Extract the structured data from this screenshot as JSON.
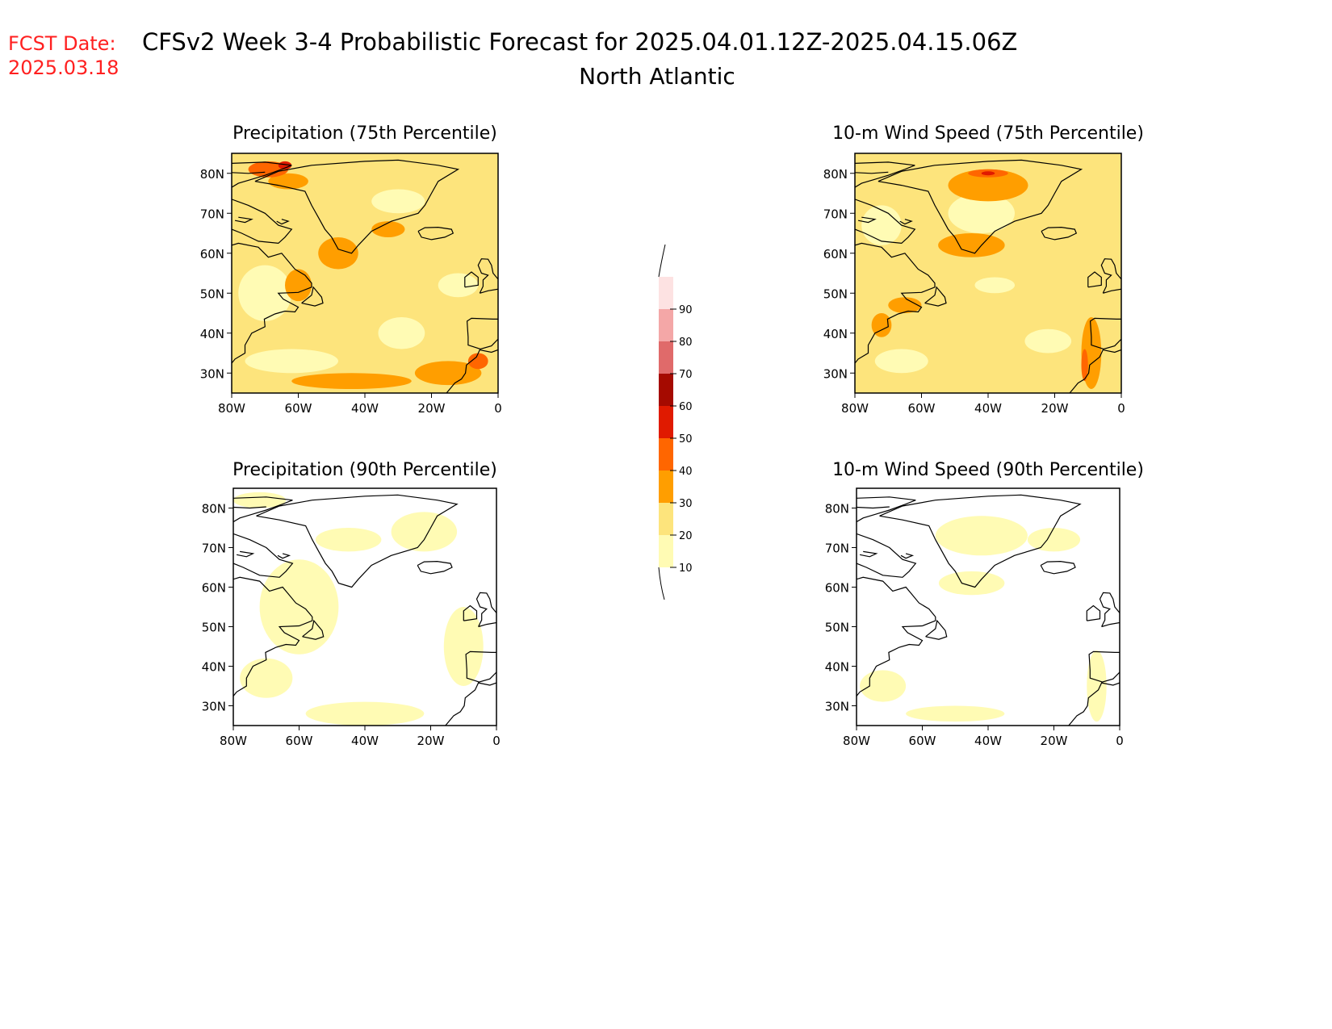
{
  "header": {
    "fcst_label": "FCST Date:",
    "fcst_date": "2025.03.18",
    "title": "CFSv2 Week 3-4 Probabilistic Forecast for 2025.04.01.12Z-2025.04.15.06Z",
    "region": "North Atlantic"
  },
  "colors": {
    "fcst_text": "#ff2020",
    "coastline": "#000000",
    "levels": [
      "#fffbb4",
      "#fde47c",
      "#ff9e00",
      "#ff6600",
      "#e01a00",
      "#a50a00",
      "#e06a6a",
      "#f4a7a7",
      "#fde2e2"
    ]
  },
  "colorbar": {
    "ticks": [
      "10",
      "20",
      "30",
      "40",
      "50",
      "60",
      "70",
      "80",
      "90"
    ]
  },
  "panels": [
    {
      "title": "Precipitation (75th Percentile)",
      "lon_labels": [
        "80W",
        "60W",
        "40W",
        "20W",
        "0"
      ],
      "lat_labels": [
        "80N",
        "70N",
        "60N",
        "50N",
        "40N",
        "30N"
      ],
      "base_level": 1,
      "patches": [
        {
          "level": 0,
          "lon": -62,
          "lat": 33,
          "rx": 14,
          "ry": 3
        },
        {
          "level": 0,
          "lon": -29,
          "lat": 40,
          "rx": 7,
          "ry": 4
        },
        {
          "level": 0,
          "lon": -12,
          "lat": 52,
          "rx": 6,
          "ry": 3
        },
        {
          "level": 0,
          "lon": -30,
          "lat": 73,
          "rx": 8,
          "ry": 3
        },
        {
          "level": 0,
          "lon": -70,
          "lat": 50,
          "rx": 8,
          "ry": 7
        },
        {
          "level": 2,
          "lon": -48,
          "lat": 60,
          "rx": 6,
          "ry": 4
        },
        {
          "level": 2,
          "lon": -44,
          "lat": 28,
          "rx": 18,
          "ry": 2
        },
        {
          "level": 2,
          "lon": -15,
          "lat": 30,
          "rx": 10,
          "ry": 3
        },
        {
          "level": 2,
          "lon": -60,
          "lat": 52,
          "rx": 4,
          "ry": 4
        },
        {
          "level": 2,
          "lon": -63,
          "lat": 78,
          "rx": 6,
          "ry": 2
        },
        {
          "level": 2,
          "lon": -33,
          "lat": 66,
          "rx": 5,
          "ry": 2
        },
        {
          "level": 3,
          "lon": -69,
          "lat": 81,
          "rx": 6,
          "ry": 2
        },
        {
          "level": 3,
          "lon": -6,
          "lat": 33,
          "rx": 3,
          "ry": 2
        },
        {
          "level": 4,
          "lon": -64,
          "lat": 82,
          "rx": 2,
          "ry": 1
        }
      ]
    },
    {
      "title": "10-m Wind Speed (75th Percentile)",
      "lon_labels": [
        "80W",
        "60W",
        "40W",
        "20W",
        "0"
      ],
      "lat_labels": [
        "80N",
        "70N",
        "60N",
        "50N",
        "40N",
        "30N"
      ],
      "base_level": 1,
      "patches": [
        {
          "level": 0,
          "lon": -42,
          "lat": 70,
          "rx": 10,
          "ry": 5
        },
        {
          "level": 0,
          "lon": -22,
          "lat": 38,
          "rx": 7,
          "ry": 3
        },
        {
          "level": 0,
          "lon": -38,
          "lat": 52,
          "rx": 6,
          "ry": 2
        },
        {
          "level": 0,
          "lon": -72,
          "lat": 67,
          "rx": 6,
          "ry": 5
        },
        {
          "level": 0,
          "lon": -66,
          "lat": 33,
          "rx": 8,
          "ry": 3
        },
        {
          "level": 2,
          "lon": -40,
          "lat": 77,
          "rx": 12,
          "ry": 4
        },
        {
          "level": 2,
          "lon": -45,
          "lat": 62,
          "rx": 10,
          "ry": 3
        },
        {
          "level": 2,
          "lon": -9,
          "lat": 35,
          "rx": 3,
          "ry": 9
        },
        {
          "level": 2,
          "lon": -65,
          "lat": 47,
          "rx": 5,
          "ry": 2
        },
        {
          "level": 2,
          "lon": -72,
          "lat": 42,
          "rx": 3,
          "ry": 3
        },
        {
          "level": 3,
          "lon": -40,
          "lat": 80,
          "rx": 6,
          "ry": 1
        },
        {
          "level": 3,
          "lon": -11,
          "lat": 32,
          "rx": 1,
          "ry": 4
        },
        {
          "level": 4,
          "lon": -40,
          "lat": 80,
          "rx": 2,
          "ry": 0.5
        }
      ]
    },
    {
      "title": "Precipitation (90th Percentile)",
      "lon_labels": [
        "80W",
        "60W",
        "40W",
        "20W",
        "0"
      ],
      "lat_labels": [
        "80N",
        "70N",
        "60N",
        "50N",
        "40N",
        "30N"
      ],
      "base_level": null,
      "patches": [
        {
          "level": 0,
          "lon": -60,
          "lat": 55,
          "rx": 12,
          "ry": 12
        },
        {
          "level": 0,
          "lon": -40,
          "lat": 28,
          "rx": 18,
          "ry": 3
        },
        {
          "level": 0,
          "lon": -10,
          "lat": 45,
          "rx": 6,
          "ry": 10
        },
        {
          "level": 0,
          "lon": -45,
          "lat": 72,
          "rx": 10,
          "ry": 3
        },
        {
          "level": 0,
          "lon": -22,
          "lat": 74,
          "rx": 10,
          "ry": 5
        },
        {
          "level": 0,
          "lon": -70,
          "lat": 37,
          "rx": 8,
          "ry": 5
        },
        {
          "level": 0,
          "lon": -72,
          "lat": 82,
          "rx": 8,
          "ry": 2
        }
      ]
    },
    {
      "title": "10-m Wind Speed (90th Percentile)",
      "lon_labels": [
        "80W",
        "60W",
        "40W",
        "20W",
        "0"
      ],
      "lat_labels": [
        "80N",
        "70N",
        "60N",
        "50N",
        "40N",
        "30N"
      ],
      "base_level": null,
      "patches": [
        {
          "level": 0,
          "lon": -42,
          "lat": 73,
          "rx": 14,
          "ry": 5
        },
        {
          "level": 0,
          "lon": -45,
          "lat": 61,
          "rx": 10,
          "ry": 3
        },
        {
          "level": 0,
          "lon": -7,
          "lat": 35,
          "rx": 3,
          "ry": 9
        },
        {
          "level": 0,
          "lon": -72,
          "lat": 35,
          "rx": 7,
          "ry": 4
        },
        {
          "level": 0,
          "lon": -20,
          "lat": 72,
          "rx": 8,
          "ry": 3
        },
        {
          "level": 0,
          "lon": -50,
          "lat": 28,
          "rx": 15,
          "ry": 2
        }
      ]
    }
  ]
}
